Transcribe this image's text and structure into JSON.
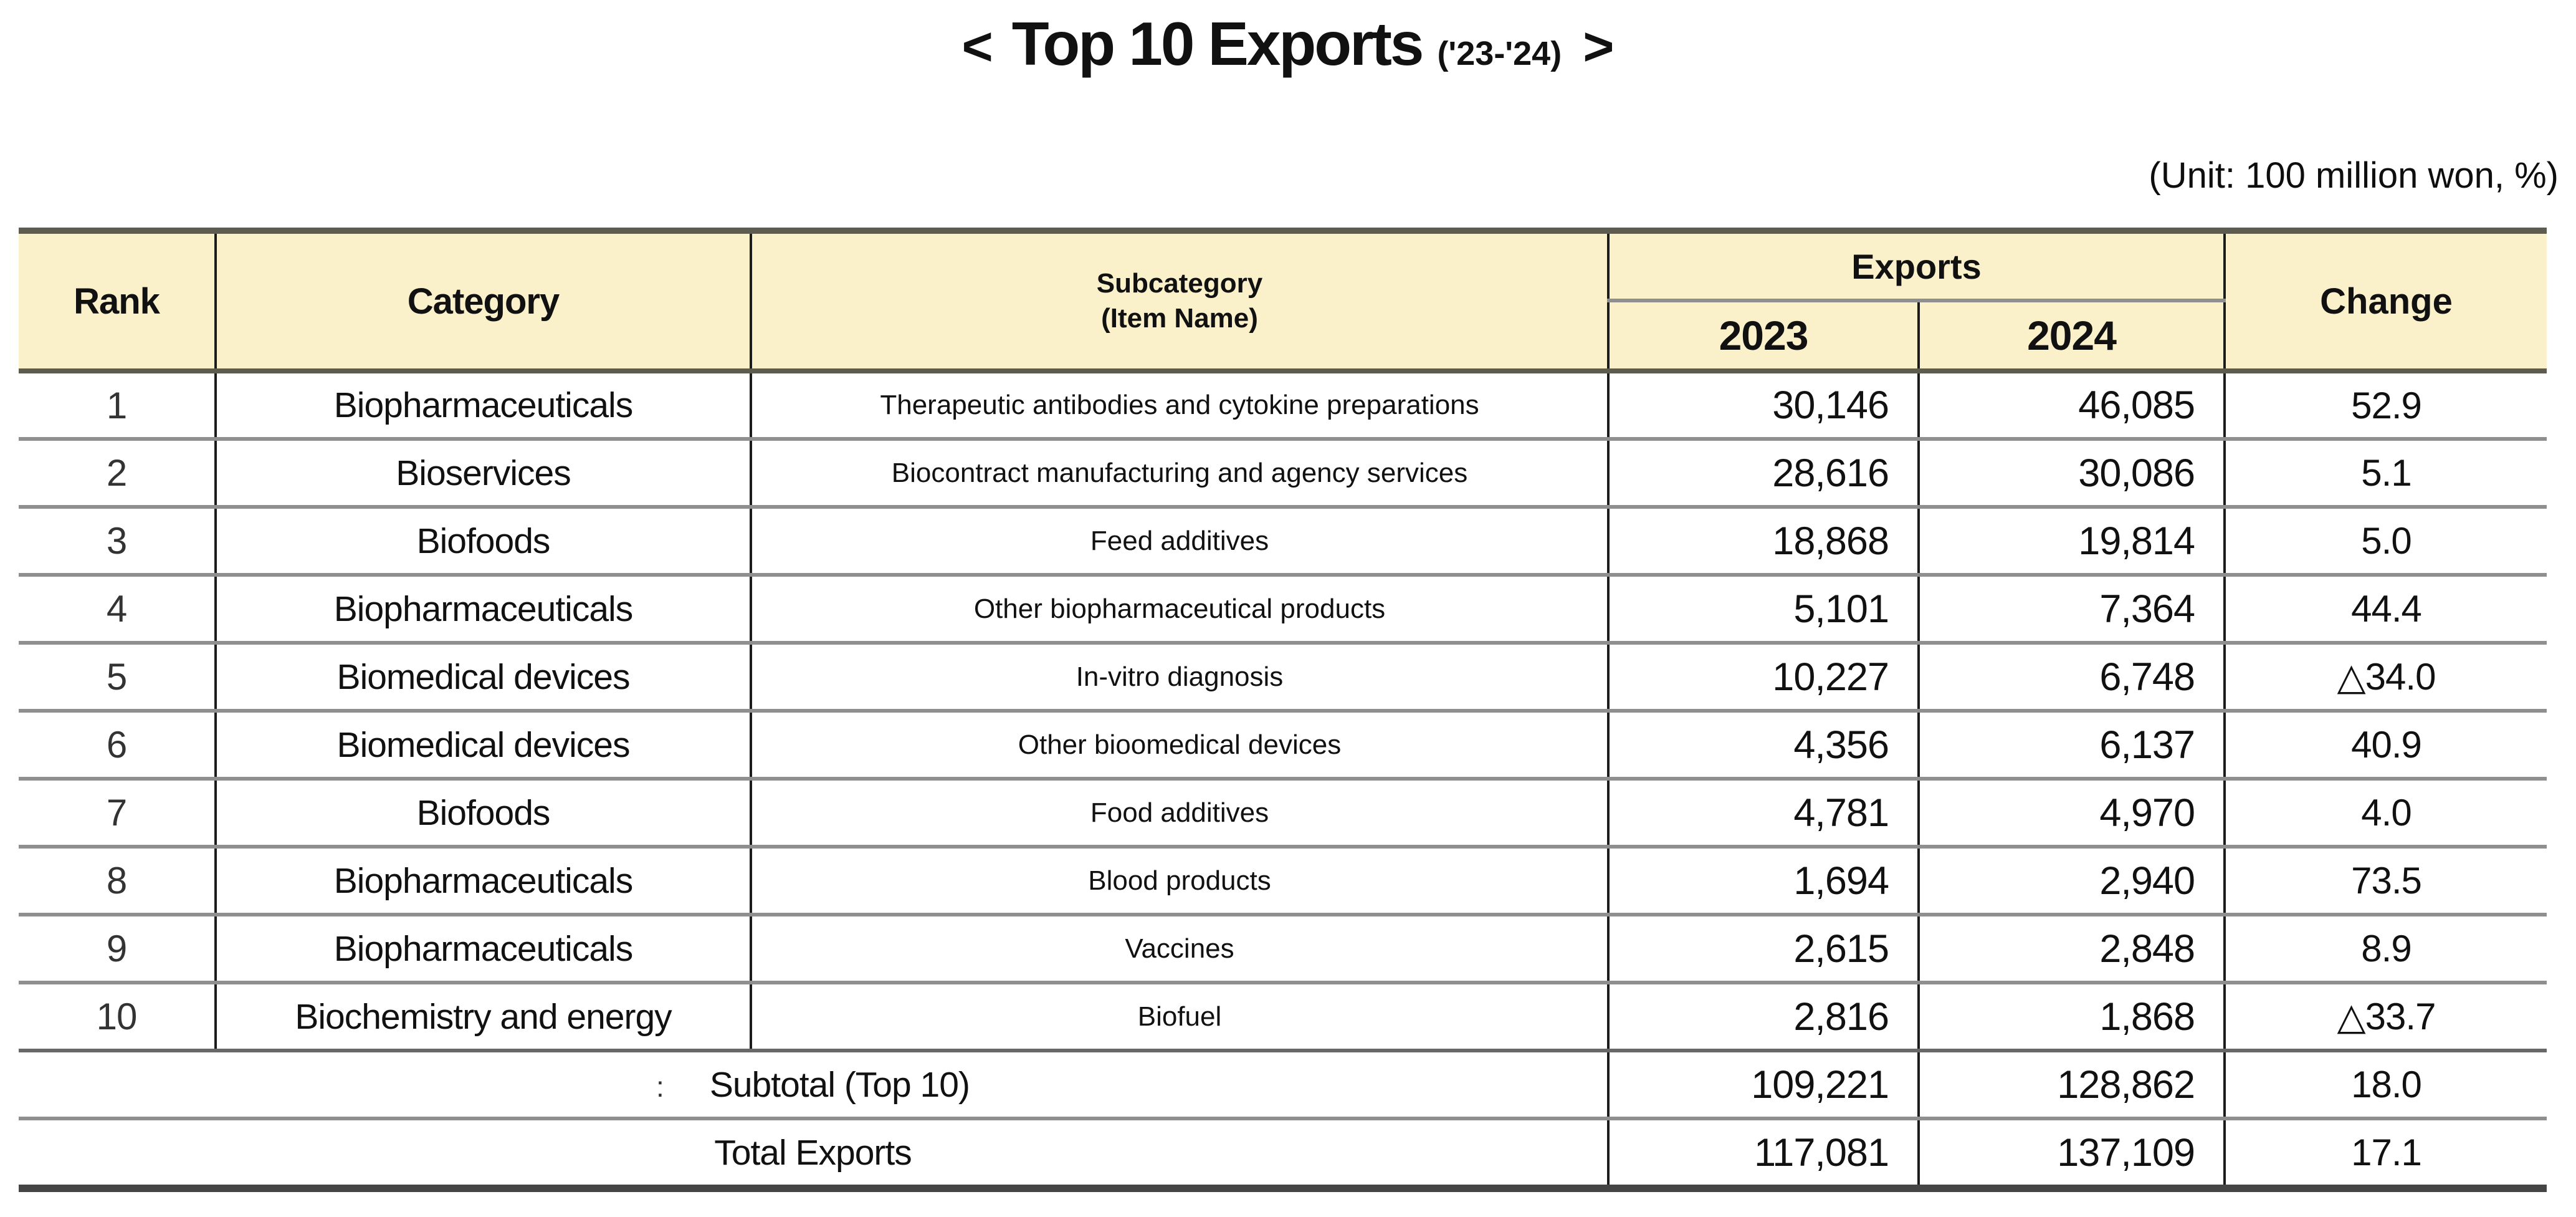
{
  "title": {
    "prefix": "<",
    "main": "Top 10 Exports",
    "range": "('23-'24)",
    "suffix": ">"
  },
  "unit_note": "(Unit: 100 million won, %)",
  "table": {
    "headers": {
      "rank": "Rank",
      "category": "Category",
      "subcategory_line1": "Subcategory",
      "subcategory_line2": "(Item Name)",
      "exports": "Exports",
      "year_2023": "2023",
      "year_2024": "2024",
      "change": "Change"
    },
    "rows": [
      {
        "rank": "1",
        "category": "Biopharmaceuticals",
        "subcategory": "Therapeutic antibodies and cytokine preparations",
        "y2023": "30,146",
        "y2024": "46,085",
        "change": "52.9"
      },
      {
        "rank": "2",
        "category": "Bioservices",
        "subcategory": "Biocontract manufacturing and agency services",
        "y2023": "28,616",
        "y2024": "30,086",
        "change": "5.1"
      },
      {
        "rank": "3",
        "category": "Biofoods",
        "subcategory": "Feed additives",
        "y2023": "18,868",
        "y2024": "19,814",
        "change": "5.0"
      },
      {
        "rank": "4",
        "category": "Biopharmaceuticals",
        "subcategory": "Other biopharmaceutical products",
        "y2023": "5,101",
        "y2024": "7,364",
        "change": "44.4"
      },
      {
        "rank": "5",
        "category": "Biomedical devices",
        "subcategory": "In-vitro diagnosis",
        "y2023": "10,227",
        "y2024": "6,748",
        "change": "△34.0"
      },
      {
        "rank": "6",
        "category": "Biomedical devices",
        "subcategory": "Other bioomedical devices",
        "y2023": "4,356",
        "y2024": "6,137",
        "change": "40.9"
      },
      {
        "rank": "7",
        "category": "Biofoods",
        "subcategory": "Food additives",
        "y2023": "4,781",
        "y2024": "4,970",
        "change": "4.0"
      },
      {
        "rank": "8",
        "category": "Biopharmaceuticals",
        "subcategory": "Blood products",
        "y2023": "1,694",
        "y2024": "2,940",
        "change": "73.5"
      },
      {
        "rank": "9",
        "category": "Biopharmaceuticals",
        "subcategory": "Vaccines",
        "y2023": "2,615",
        "y2024": "2,848",
        "change": "8.9"
      },
      {
        "rank": "10",
        "category": "Biochemistry and energy",
        "subcategory": "Biofuel",
        "y2023": "2,816",
        "y2024": "1,868",
        "change": "△33.7"
      }
    ],
    "summary_rows": [
      {
        "label_prefix": ":",
        "label": "Subtotal (Top 10)",
        "y2023": "109,221",
        "y2024": "128,862",
        "change": "18.0"
      },
      {
        "label_prefix": "",
        "label": "Total Exports",
        "y2023": "117,081",
        "y2024": "137,109",
        "change": "17.1"
      }
    ]
  },
  "colors": {
    "header_bg": "#FAF0CA",
    "header_rule": "#5E5C4E",
    "row_rule": "#8F8F8F",
    "bottom_rule": "#454545",
    "column_rule": "#1C1C1C"
  }
}
